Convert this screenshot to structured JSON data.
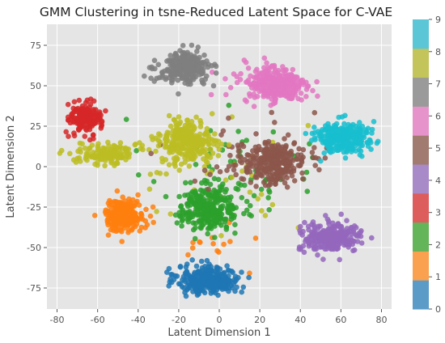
{
  "chart_data": {
    "type": "scatter",
    "title": "GMM Clustering in tsne-Reduced Latent Space for C-VAE",
    "xlabel": "Latent Dimension 1",
    "ylabel": "Latent Dimension 2",
    "xlim": [
      -85,
      85
    ],
    "ylim": [
      -88,
      88
    ],
    "x_ticks": [
      -80,
      -60,
      -40,
      -20,
      0,
      20,
      40,
      60,
      80
    ],
    "y_ticks": [
      -75,
      -50,
      -25,
      0,
      25,
      50,
      75
    ],
    "grid": true,
    "background_color": "#e5e5e5",
    "colorbar": {
      "cmap": "tab10",
      "ticks": [
        0,
        1,
        2,
        3,
        4,
        5,
        6,
        7,
        8,
        9
      ],
      "colors": [
        "#5a9bc7",
        "#f9a14e",
        "#64b45a",
        "#dd5d5d",
        "#a88ac8",
        "#a17a70",
        "#e793cb",
        "#9a9a9a",
        "#c3c45a",
        "#5bc6d6"
      ]
    },
    "clusters": [
      {
        "label": 0,
        "color": "#1f77b4",
        "center": [
          -5,
          -70
        ],
        "spread": [
          14,
          8
        ],
        "n": 320
      },
      {
        "label": 1,
        "color": "#ff7f0e",
        "center": [
          -47,
          -30
        ],
        "spread": [
          9,
          9
        ],
        "n": 220
      },
      {
        "label": 2,
        "color": "#2ca02c",
        "center": [
          -5,
          -26
        ],
        "spread": [
          13,
          12
        ],
        "n": 300
      },
      {
        "label": 3,
        "color": "#d62728",
        "center": [
          -66,
          30
        ],
        "spread": [
          7,
          9
        ],
        "n": 160
      },
      {
        "label": 4,
        "color": "#9467bd",
        "center": [
          55,
          -44
        ],
        "spread": [
          14,
          8
        ],
        "n": 260
      },
      {
        "label": 5,
        "color": "#8c564b",
        "center": [
          27,
          3
        ],
        "spread": [
          15,
          11
        ],
        "n": 280
      },
      {
        "label": 6,
        "color": "#e377c2",
        "center": [
          28,
          50
        ],
        "spread": [
          14,
          10
        ],
        "n": 300
      },
      {
        "label": 7,
        "color": "#7f7f7f",
        "center": [
          -17,
          61
        ],
        "spread": [
          12,
          9
        ],
        "n": 240
      },
      {
        "label": 8,
        "color": "#bcbd22",
        "center": [
          -16,
          16
        ],
        "spread": [
          12,
          11
        ],
        "n": 260
      },
      {
        "label": 8,
        "color": "#bcbd22",
        "center": [
          -55,
          8
        ],
        "spread": [
          13,
          6
        ],
        "n": 140
      },
      {
        "label": 9,
        "color": "#17becf",
        "center": [
          61,
          18
        ],
        "spread": [
          12,
          9
        ],
        "n": 280
      }
    ],
    "outliers": [
      {
        "label": 2,
        "color": "#2ca02c",
        "count": 60,
        "center": [
          5,
          0
        ],
        "spread": [
          35,
          25
        ]
      },
      {
        "label": 8,
        "color": "#bcbd22",
        "count": 50,
        "center": [
          -5,
          -5
        ],
        "spread": [
          40,
          30
        ]
      },
      {
        "label": 5,
        "color": "#8c564b",
        "count": 30,
        "center": [
          10,
          10
        ],
        "spread": [
          30,
          25
        ]
      },
      {
        "label": 1,
        "color": "#ff7f0e",
        "count": 15,
        "center": [
          5,
          -50
        ],
        "spread": [
          20,
          10
        ]
      },
      {
        "label": 6,
        "color": "#e377c2",
        "count": 15,
        "center": [
          10,
          60
        ],
        "spread": [
          20,
          10
        ]
      }
    ]
  }
}
